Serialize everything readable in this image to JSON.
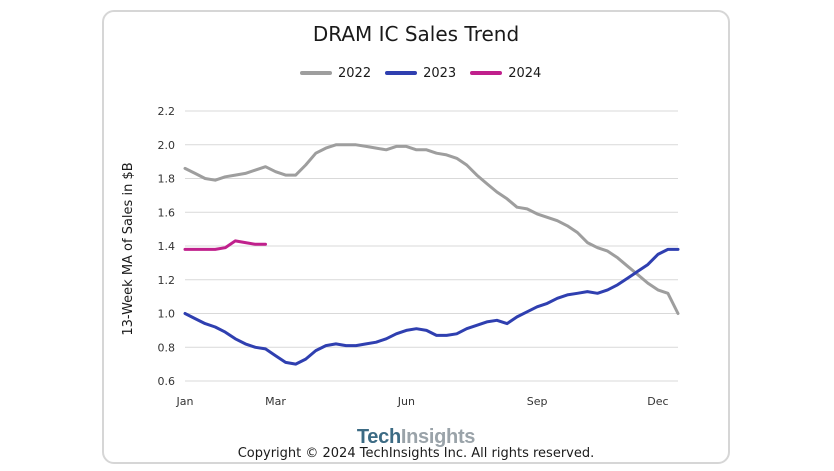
{
  "chart_data": {
    "type": "line",
    "title": "DRAM IC Sales Trend",
    "xlabel": "",
    "ylabel": "13-Week MA of Sales in $B",
    "ylim": [
      0.6,
      2.2
    ],
    "yticks": [
      "0.6",
      "0.8",
      "1.0",
      "1.2",
      "1.4",
      "1.6",
      "1.8",
      "2.0",
      "2.2"
    ],
    "xlim": [
      1,
      50
    ],
    "xticks": [
      {
        "label": "Jan",
        "x": 1
      },
      {
        "label": "Mar",
        "x": 10
      },
      {
        "label": "Jun",
        "x": 23
      },
      {
        "label": "Sep",
        "x": 36
      },
      {
        "label": "Dec",
        "x": 48
      }
    ],
    "grid": true,
    "legend_position": "top",
    "series": [
      {
        "name": "2022",
        "color": "#9e9e9e",
        "x": [
          1,
          2,
          3,
          4,
          5,
          6,
          7,
          8,
          9,
          10,
          11,
          12,
          13,
          14,
          15,
          16,
          17,
          18,
          19,
          20,
          21,
          22,
          23,
          24,
          25,
          26,
          27,
          28,
          29,
          30,
          31,
          32,
          33,
          34,
          35,
          36,
          37,
          38,
          39,
          40,
          41,
          42,
          43,
          44,
          45,
          46,
          47,
          48,
          49,
          50
        ],
        "y": [
          1.86,
          1.83,
          1.8,
          1.79,
          1.81,
          1.82,
          1.83,
          1.85,
          1.87,
          1.84,
          1.82,
          1.82,
          1.88,
          1.95,
          1.98,
          2.0,
          2.0,
          2.0,
          1.99,
          1.98,
          1.97,
          1.99,
          1.99,
          1.97,
          1.97,
          1.95,
          1.94,
          1.92,
          1.88,
          1.82,
          1.77,
          1.72,
          1.68,
          1.63,
          1.62,
          1.59,
          1.57,
          1.55,
          1.52,
          1.48,
          1.42,
          1.39,
          1.37,
          1.33,
          1.28,
          1.23,
          1.18,
          1.14,
          1.12,
          1.0
        ]
      },
      {
        "name": "2023",
        "color": "#2f3fb0",
        "x": [
          1,
          2,
          3,
          4,
          5,
          6,
          7,
          8,
          9,
          10,
          11,
          12,
          13,
          14,
          15,
          16,
          17,
          18,
          19,
          20,
          21,
          22,
          23,
          24,
          25,
          26,
          27,
          28,
          29,
          30,
          31,
          32,
          33,
          34,
          35,
          36,
          37,
          38,
          39,
          40,
          41,
          42,
          43,
          44,
          45,
          46,
          47,
          48,
          49,
          50
        ],
        "y": [
          1.0,
          0.97,
          0.94,
          0.92,
          0.89,
          0.85,
          0.82,
          0.8,
          0.79,
          0.75,
          0.71,
          0.7,
          0.73,
          0.78,
          0.81,
          0.82,
          0.81,
          0.81,
          0.82,
          0.83,
          0.85,
          0.88,
          0.9,
          0.91,
          0.9,
          0.87,
          0.87,
          0.88,
          0.91,
          0.93,
          0.95,
          0.96,
          0.94,
          0.98,
          1.01,
          1.04,
          1.06,
          1.09,
          1.11,
          1.12,
          1.13,
          1.12,
          1.14,
          1.17,
          1.21,
          1.25,
          1.29,
          1.35,
          1.38,
          1.38
        ]
      },
      {
        "name": "2024",
        "color": "#c0208c",
        "x": [
          1,
          2,
          3,
          4,
          5,
          6,
          7,
          8,
          9
        ],
        "y": [
          1.38,
          1.38,
          1.38,
          1.38,
          1.39,
          1.43,
          1.42,
          1.41,
          1.41
        ]
      }
    ]
  },
  "footer": {
    "brand_part1": "Tech",
    "brand_part2": "Insights",
    "copyright": "Copyright © 2024 TechInsights Inc.  All rights reserved."
  }
}
